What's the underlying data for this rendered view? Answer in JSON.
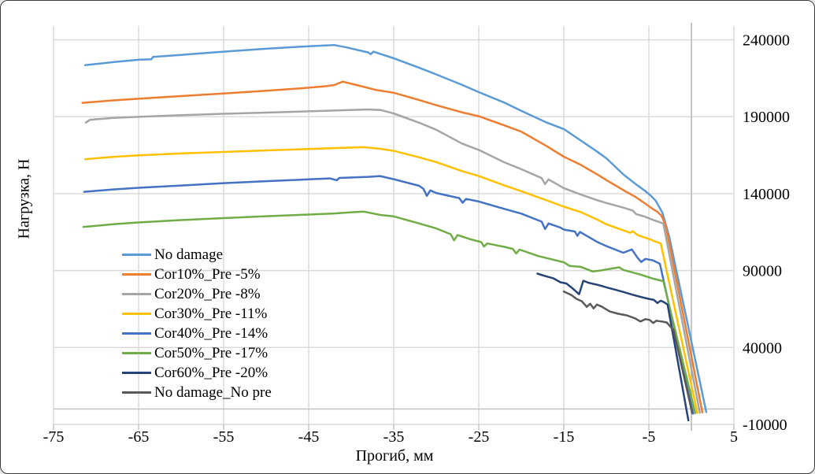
{
  "chart_data": {
    "type": "line",
    "title": "",
    "xlabel": "Прогиб, мм",
    "ylabel": "Нагрузка, Н",
    "xlim": [
      -75,
      5
    ],
    "ylim": [
      -10000,
      250000
    ],
    "x_ticks": [
      -75,
      -65,
      -55,
      -45,
      -35,
      -25,
      -15,
      -5,
      5
    ],
    "y_ticks": [
      240000,
      190000,
      140000,
      90000,
      40000,
      -10000
    ],
    "grid": true,
    "grid_color": "#D9D9D9",
    "axis_color": "#BFBFBF",
    "text_color": "#000000",
    "legend_position": "inside-left",
    "series": [
      {
        "name": "No damage",
        "color": "#5B9BD5",
        "points": [
          [
            -71.3,
            223500
          ],
          [
            -68,
            225500
          ],
          [
            -65,
            227000
          ],
          [
            -63.5,
            227400
          ],
          [
            -63.3,
            228900
          ],
          [
            -60,
            230200
          ],
          [
            -55,
            232300
          ],
          [
            -50,
            234200
          ],
          [
            -45,
            235800
          ],
          [
            -42,
            236600
          ],
          [
            -40.5,
            235000
          ],
          [
            -38,
            231800
          ],
          [
            -37.7,
            230600
          ],
          [
            -37.4,
            232300
          ],
          [
            -35,
            228000
          ],
          [
            -32,
            221800
          ],
          [
            -30,
            217500
          ],
          [
            -27,
            210800
          ],
          [
            -25,
            206000
          ],
          [
            -22,
            199200
          ],
          [
            -20,
            193800
          ],
          [
            -17,
            186200
          ],
          [
            -15,
            182000
          ],
          [
            -13,
            174500
          ],
          [
            -11,
            167000
          ],
          [
            -10,
            163000
          ],
          [
            -8,
            152500
          ],
          [
            -6.5,
            146000
          ],
          [
            -5.5,
            142000
          ],
          [
            -4.8,
            138800
          ],
          [
            -4.2,
            135500
          ],
          [
            -3.4,
            127500
          ],
          [
            -2.6,
            112000
          ],
          [
            1.75,
            -2000
          ]
        ]
      },
      {
        "name": "Cor10%_Pre -5%",
        "color": "#ED7D31",
        "points": [
          [
            -71.6,
            199000
          ],
          [
            -68,
            200600
          ],
          [
            -65,
            201700
          ],
          [
            -60,
            203400
          ],
          [
            -55,
            205100
          ],
          [
            -50,
            206900
          ],
          [
            -46,
            208400
          ],
          [
            -43,
            209800
          ],
          [
            -42,
            210600
          ],
          [
            -41,
            212800
          ],
          [
            -39.5,
            210800
          ],
          [
            -37,
            207300
          ],
          [
            -35,
            205600
          ],
          [
            -32,
            200800
          ],
          [
            -30,
            197500
          ],
          [
            -27,
            192900
          ],
          [
            -25,
            190300
          ],
          [
            -22,
            184400
          ],
          [
            -20,
            180300
          ],
          [
            -17,
            170800
          ],
          [
            -15,
            164000
          ],
          [
            -13,
            158700
          ],
          [
            -11,
            152300
          ],
          [
            -10,
            148800
          ],
          [
            -8,
            142300
          ],
          [
            -6.5,
            137600
          ],
          [
            -5.5,
            133800
          ],
          [
            -4.6,
            130300
          ],
          [
            -4,
            128200
          ],
          [
            -3.5,
            125600
          ],
          [
            -3,
            119000
          ],
          [
            1.3,
            -2200
          ]
        ]
      },
      {
        "name": "Cor20%_Pre -8%",
        "color": "#A5A5A5",
        "points": [
          [
            -71.2,
            186200
          ],
          [
            -70.7,
            188000
          ],
          [
            -68,
            189200
          ],
          [
            -65,
            189900
          ],
          [
            -60,
            191000
          ],
          [
            -55,
            191900
          ],
          [
            -50,
            192700
          ],
          [
            -45,
            193500
          ],
          [
            -41,
            194200
          ],
          [
            -38,
            194700
          ],
          [
            -36.5,
            194300
          ],
          [
            -35,
            192100
          ],
          [
            -32,
            186100
          ],
          [
            -30,
            181500
          ],
          [
            -27,
            172600
          ],
          [
            -25,
            168400
          ],
          [
            -22,
            160400
          ],
          [
            -20,
            155900
          ],
          [
            -17.6,
            150100
          ],
          [
            -17.2,
            146200
          ],
          [
            -16.8,
            149300
          ],
          [
            -15,
            143600
          ],
          [
            -13,
            139400
          ],
          [
            -11,
            135600
          ],
          [
            -10,
            133900
          ],
          [
            -8,
            130900
          ],
          [
            -6.9,
            129000
          ],
          [
            -6.5,
            126700
          ],
          [
            -5.5,
            125100
          ],
          [
            -4.5,
            122900
          ],
          [
            -3.3,
            120600
          ],
          [
            1.0,
            -2400
          ]
        ]
      },
      {
        "name": "Cor30%_Pre -11%",
        "color": "#FFC000",
        "points": [
          [
            -71.3,
            162400
          ],
          [
            -68,
            163900
          ],
          [
            -65,
            164900
          ],
          [
            -60,
            166100
          ],
          [
            -55,
            167100
          ],
          [
            -50,
            168100
          ],
          [
            -45,
            169000
          ],
          [
            -41,
            169800
          ],
          [
            -38.5,
            170200
          ],
          [
            -36.5,
            169100
          ],
          [
            -35,
            167800
          ],
          [
            -32,
            163600
          ],
          [
            -30,
            160500
          ],
          [
            -27,
            154700
          ],
          [
            -25,
            151400
          ],
          [
            -22,
            145400
          ],
          [
            -20,
            141600
          ],
          [
            -17,
            135600
          ],
          [
            -15,
            131500
          ],
          [
            -13,
            128000
          ],
          [
            -11,
            122900
          ],
          [
            -10,
            120100
          ],
          [
            -8,
            116100
          ],
          [
            -7.2,
            114600
          ],
          [
            -6.9,
            115600
          ],
          [
            -6.3,
            113000
          ],
          [
            -5,
            110600
          ],
          [
            -4.3,
            109000
          ],
          [
            -3.6,
            107600
          ],
          [
            0.7,
            -2600
          ]
        ]
      },
      {
        "name": "Cor40%_Pre -14%",
        "color": "#4472C4",
        "points": [
          [
            -71.4,
            141200
          ],
          [
            -68,
            142700
          ],
          [
            -65,
            143800
          ],
          [
            -60,
            145300
          ],
          [
            -55,
            146800
          ],
          [
            -50,
            148100
          ],
          [
            -45,
            149300
          ],
          [
            -42.5,
            149900
          ],
          [
            -41.7,
            148700
          ],
          [
            -41.4,
            150200
          ],
          [
            -38,
            150900
          ],
          [
            -36.6,
            151400
          ],
          [
            -35,
            149400
          ],
          [
            -32,
            145100
          ],
          [
            -31.5,
            143100
          ],
          [
            -31.1,
            138600
          ],
          [
            -30.7,
            142100
          ],
          [
            -30,
            140400
          ],
          [
            -27.3,
            137100
          ],
          [
            -26.9,
            134100
          ],
          [
            -26.5,
            136600
          ],
          [
            -25,
            134900
          ],
          [
            -22,
            130100
          ],
          [
            -20,
            127000
          ],
          [
            -17.6,
            121800
          ],
          [
            -17.2,
            117000
          ],
          [
            -16.8,
            120600
          ],
          [
            -15.4,
            117900
          ],
          [
            -15,
            116600
          ],
          [
            -13.7,
            115400
          ],
          [
            -13.4,
            112600
          ],
          [
            -13.1,
            115100
          ],
          [
            -11,
            108400
          ],
          [
            -10,
            105900
          ],
          [
            -8,
            101600
          ],
          [
            -7,
            103700
          ],
          [
            -6.3,
            98100
          ],
          [
            -5.9,
            95600
          ],
          [
            -5.4,
            97600
          ],
          [
            -4.5,
            96600
          ],
          [
            -3.7,
            94400
          ],
          [
            0.2,
            -3000
          ]
        ]
      },
      {
        "name": "Cor50%_Pre -17%",
        "color": "#70AD47",
        "points": [
          [
            -71.5,
            118300
          ],
          [
            -68,
            120100
          ],
          [
            -65,
            121300
          ],
          [
            -60,
            122800
          ],
          [
            -55,
            124100
          ],
          [
            -50,
            125300
          ],
          [
            -45,
            126400
          ],
          [
            -42,
            127100
          ],
          [
            -40,
            127900
          ],
          [
            -38.5,
            128300
          ],
          [
            -36.5,
            126100
          ],
          [
            -35,
            125200
          ],
          [
            -32,
            120600
          ],
          [
            -30,
            117400
          ],
          [
            -28.3,
            113600
          ],
          [
            -27.9,
            109600
          ],
          [
            -27.5,
            113100
          ],
          [
            -26,
            110400
          ],
          [
            -24.7,
            108500
          ],
          [
            -24.4,
            105600
          ],
          [
            -24,
            107600
          ],
          [
            -22,
            105400
          ],
          [
            -21,
            104100
          ],
          [
            -20.6,
            101100
          ],
          [
            -20.2,
            103600
          ],
          [
            -18,
            99400
          ],
          [
            -15,
            95400
          ],
          [
            -14.3,
            93000
          ],
          [
            -13,
            92400
          ],
          [
            -11.6,
            89400
          ],
          [
            -10.6,
            90100
          ],
          [
            -8.5,
            92100
          ],
          [
            -8,
            90400
          ],
          [
            -6,
            87400
          ],
          [
            -4.6,
            84900
          ],
          [
            -3.3,
            83100
          ],
          [
            0.45,
            -2700
          ]
        ]
      },
      {
        "name": "Cor60%_Pre -20%",
        "color": "#264478",
        "points": [
          [
            -18.1,
            88000
          ],
          [
            -17.2,
            86400
          ],
          [
            -16.2,
            84900
          ],
          [
            -15.4,
            82400
          ],
          [
            -14.7,
            81600
          ],
          [
            -13.9,
            78100
          ],
          [
            -13.2,
            74600
          ],
          [
            -12.7,
            83400
          ],
          [
            -12.1,
            82100
          ],
          [
            -11,
            80700
          ],
          [
            -10,
            79100
          ],
          [
            -9,
            77600
          ],
          [
            -8,
            76100
          ],
          [
            -7,
            74400
          ],
          [
            -6,
            72900
          ],
          [
            -5,
            71600
          ],
          [
            -4.4,
            70900
          ],
          [
            -4,
            68900
          ],
          [
            -3.6,
            70400
          ],
          [
            -3.2,
            69400
          ],
          [
            -2.8,
            67900
          ],
          [
            -0.35,
            -7400
          ]
        ]
      },
      {
        "name": "No damage_No pre",
        "color": "#595959",
        "points": [
          [
            -15,
            76400
          ],
          [
            -14.1,
            74100
          ],
          [
            -13.5,
            71600
          ],
          [
            -12.9,
            70100
          ],
          [
            -12.3,
            66400
          ],
          [
            -11.9,
            68400
          ],
          [
            -11.5,
            65400
          ],
          [
            -11.1,
            67900
          ],
          [
            -10.5,
            66400
          ],
          [
            -9.6,
            63400
          ],
          [
            -8.6,
            61900
          ],
          [
            -7.6,
            60900
          ],
          [
            -6.6,
            58900
          ],
          [
            -6,
            56900
          ],
          [
            -5.4,
            58400
          ],
          [
            -4.9,
            57900
          ],
          [
            -4.5,
            55900
          ],
          [
            -4.1,
            57400
          ],
          [
            -3.5,
            56900
          ],
          [
            -2.9,
            56300
          ],
          [
            -2.4,
            53100
          ],
          [
            -2.1,
            51400
          ],
          [
            0.1,
            -2700
          ]
        ]
      }
    ]
  }
}
